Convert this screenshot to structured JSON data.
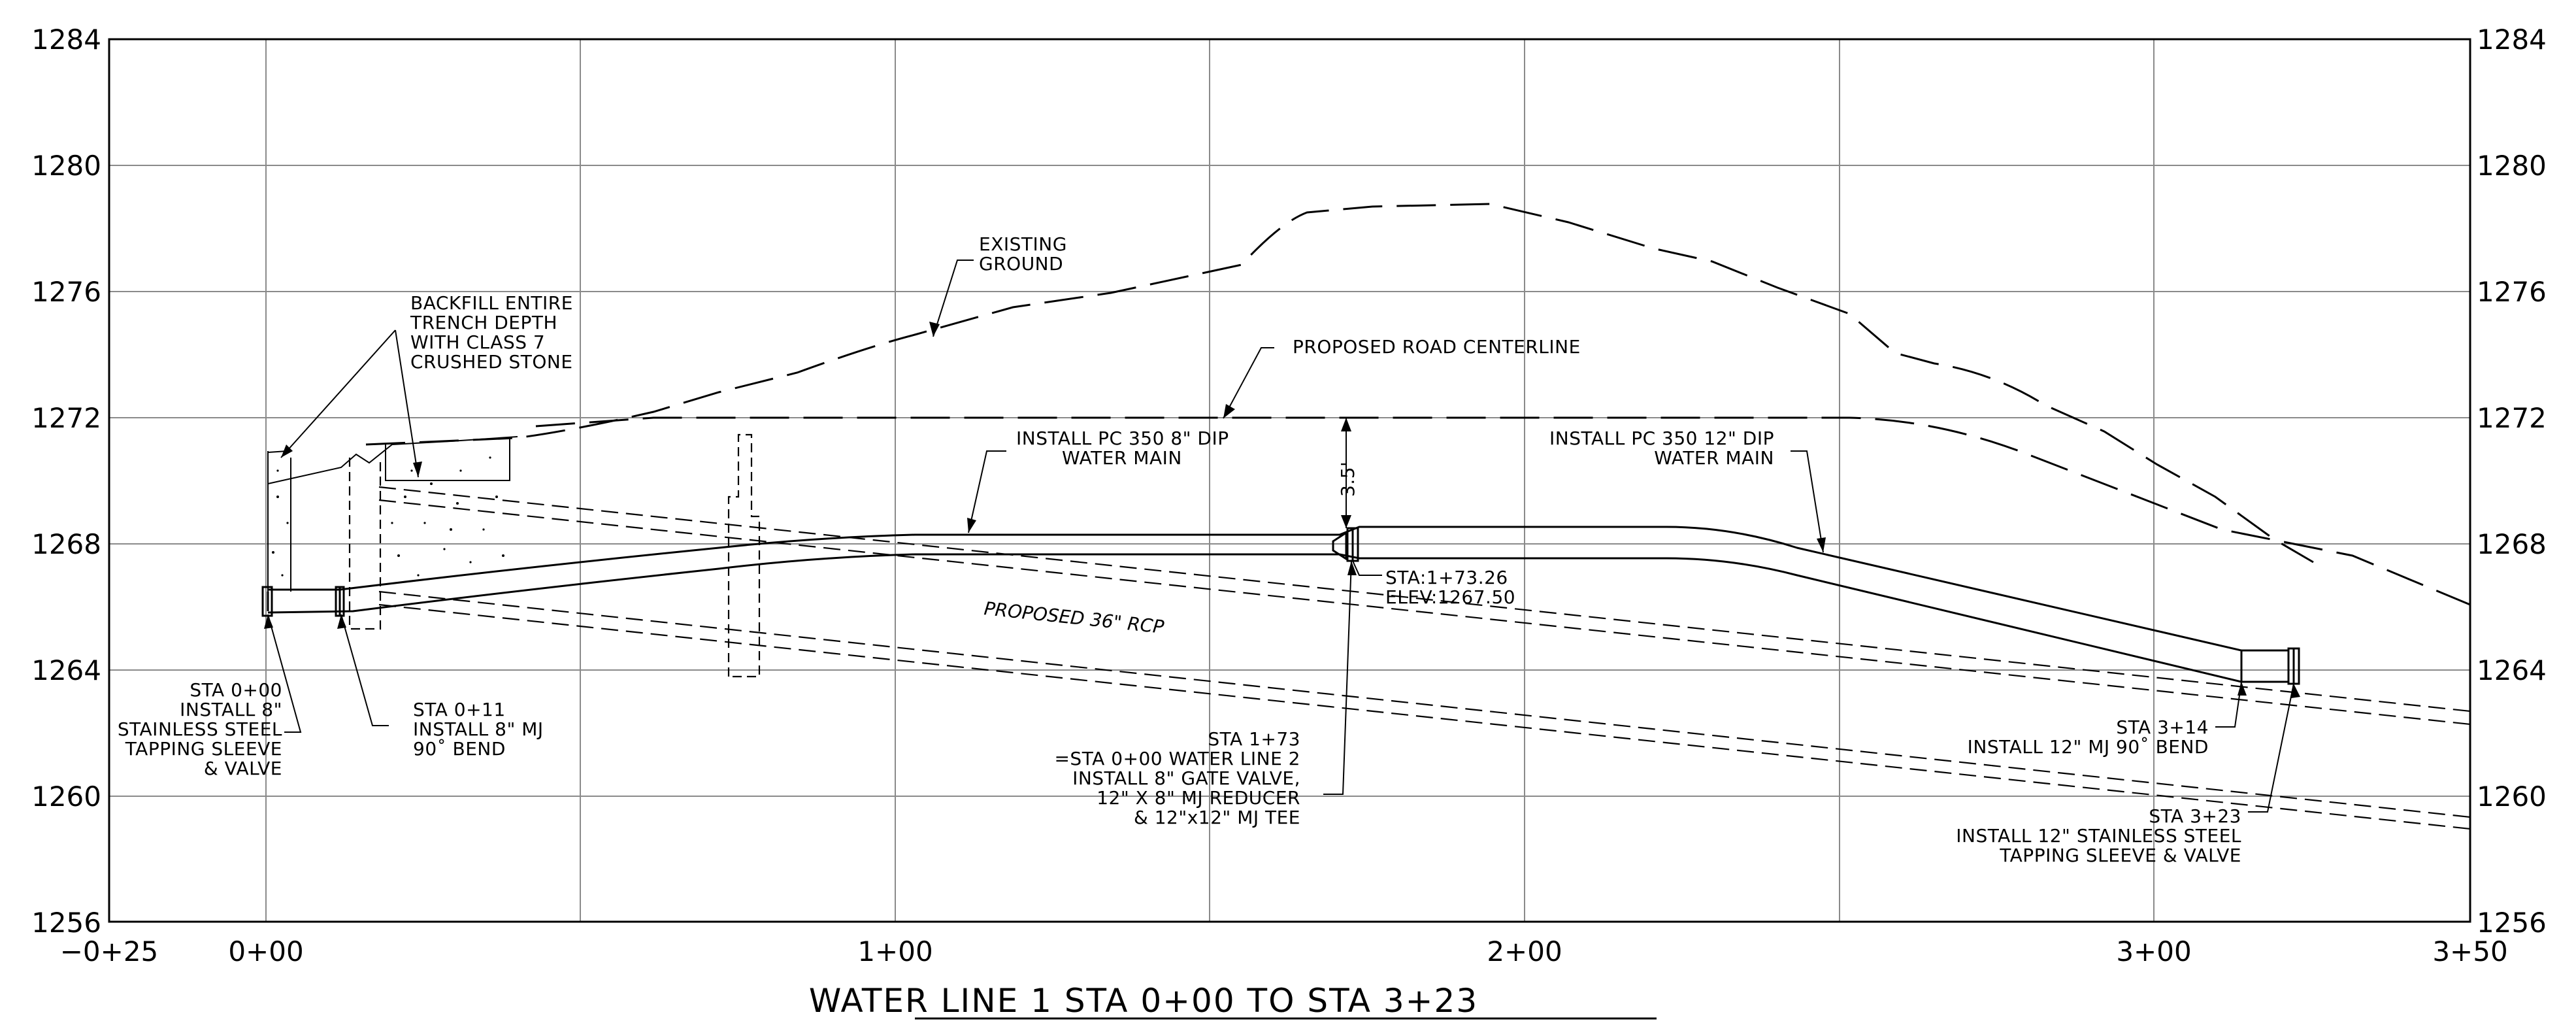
{
  "title": "WATER LINE 1 STA 0+00 TO STA 3+23",
  "axes": {
    "elevations": [
      "1284",
      "1280",
      "1276",
      "1272",
      "1268",
      "1264",
      "1260",
      "1256"
    ],
    "stations": [
      "−0+25",
      "0+00",
      "1+00",
      "2+00",
      "3+00",
      "3+50"
    ]
  },
  "labels": {
    "existing_ground": [
      "EXISTING",
      "GROUND"
    ],
    "backfill": [
      "BACKFILL ENTIRE",
      "TRENCH DEPTH",
      "WITH CLASS 7",
      "CRUSHED STONE"
    ],
    "road_centerline": "PROPOSED ROAD CENTERLINE",
    "main_8": [
      "INSTALL PC 350 8\" DIP",
      "WATER MAIN"
    ],
    "main_12": [
      "INSTALL PC 350 12\" DIP",
      "WATER MAIN"
    ],
    "rcp": "PROPOSED 36\" RCP",
    "cover": "3.5'",
    "sta_173_26": [
      "STA:1+73.26",
      "ELEV:1267.50"
    ],
    "sta_0_00": [
      "STA 0+00",
      "INSTALL 8\"",
      "STAINLESS STEEL",
      "TAPPING SLEEVE",
      "&      VALVE"
    ],
    "sta_0_11": [
      "STA 0+11",
      "INSTALL 8\" MJ",
      "90˚ BEND"
    ],
    "sta_1_73": [
      "STA 1+73",
      "=STA 0+00 WATER LINE 2",
      "INSTALL 8\" GATE VALVE,",
      "12\" X 8\" MJ REDUCER",
      "& 12\"x12\" MJ TEE"
    ],
    "sta_3_14": [
      "STA 3+14",
      "INSTALL 12\" MJ 90˚ BEND"
    ],
    "sta_3_23": [
      "STA 3+23",
      "INSTALL 12\" STAINLESS STEEL",
      "TAPPING SLEEVE & VALVE"
    ]
  }
}
